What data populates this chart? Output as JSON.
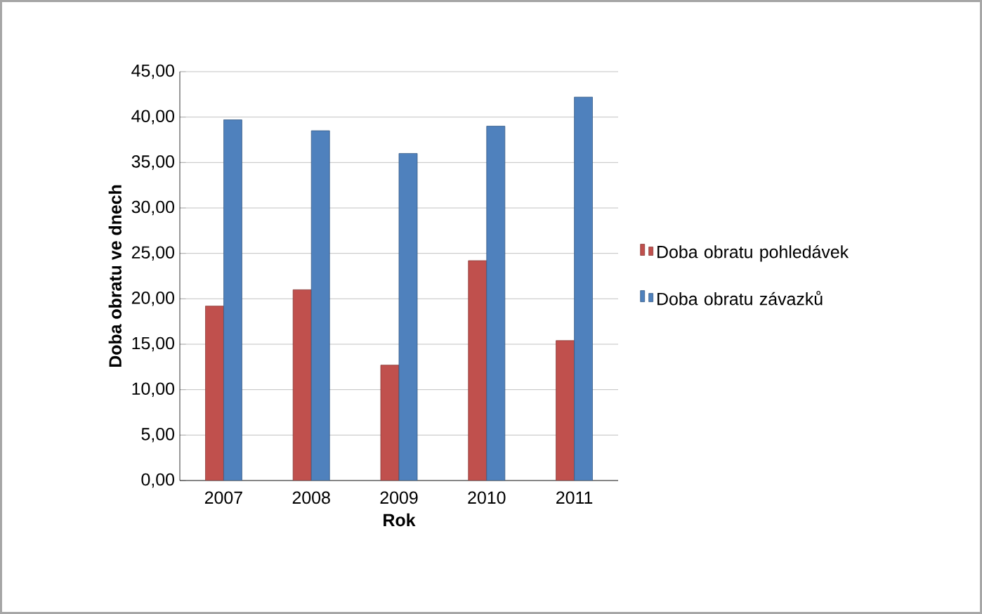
{
  "chart_data": {
    "type": "bar",
    "xlabel": "Rok",
    "ylabel": "Doba obratu ve dnech",
    "categories": [
      "2007",
      "2008",
      "2009",
      "2010",
      "2011"
    ],
    "series": [
      {
        "name": "Doba obratu pohledávek",
        "color": "#c0504d",
        "values": [
          19.2,
          21.0,
          12.7,
          24.2,
          15.4
        ]
      },
      {
        "name": "Doba obratu závazků",
        "color": "#4f81bd",
        "values": [
          39.7,
          38.5,
          36.0,
          39.0,
          42.2
        ]
      }
    ],
    "ylim": [
      0,
      45
    ],
    "yticks": [
      {
        "value": 0,
        "label": "0,00"
      },
      {
        "value": 5,
        "label": "5,00"
      },
      {
        "value": 10,
        "label": "10,00"
      },
      {
        "value": 15,
        "label": "15,00"
      },
      {
        "value": 20,
        "label": "20,00"
      },
      {
        "value": 25,
        "label": "25,00"
      },
      {
        "value": 30,
        "label": "30,00"
      },
      {
        "value": 35,
        "label": "35,00"
      },
      {
        "value": 40,
        "label": "40,00"
      },
      {
        "value": 45,
        "label": "45,00"
      }
    ],
    "grid": "y",
    "legend": "right"
  }
}
